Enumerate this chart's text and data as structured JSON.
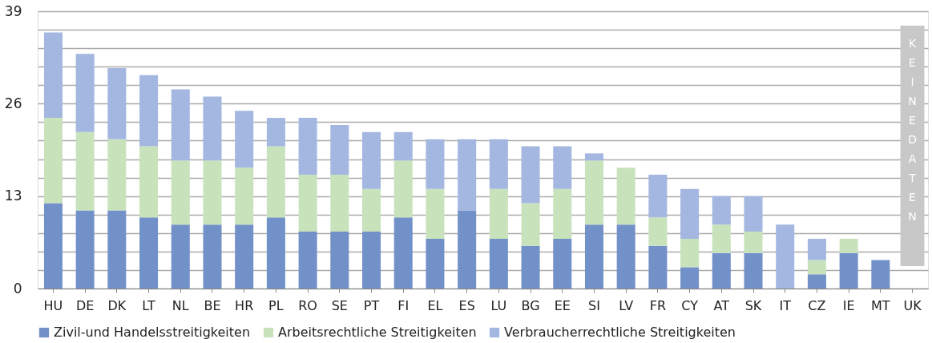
{
  "chart_data": {
    "type": "bar",
    "stacked": true,
    "categories": [
      "HU",
      "DE",
      "DK",
      "LT",
      "NL",
      "BE",
      "HR",
      "PL",
      "RO",
      "SE",
      "PT",
      "FI",
      "EL",
      "ES",
      "LU",
      "BG",
      "EE",
      "SI",
      "LV",
      "FR",
      "CY",
      "AT",
      "SK",
      "IT",
      "CZ",
      "IE",
      "MT",
      "UK"
    ],
    "series": [
      {
        "name": "Zivil-und Handelsstreitigkeiten",
        "color": "#7391c9",
        "values": [
          12,
          11,
          11,
          10,
          9,
          9,
          9,
          10,
          8,
          8,
          8,
          10,
          7,
          11,
          7,
          6,
          7,
          9,
          9,
          6,
          3,
          5,
          5,
          0,
          2,
          5,
          4,
          null
        ]
      },
      {
        "name": "Arbeitsrechtliche Streitigkeiten",
        "color": "#c8e3bc",
        "values": [
          12,
          11,
          10,
          10,
          9,
          9,
          8,
          10,
          8,
          8,
          6,
          8,
          7,
          0,
          7,
          6,
          7,
          9,
          8,
          4,
          4,
          4,
          3,
          0,
          2,
          2,
          0,
          null
        ]
      },
      {
        "name": "Verbraucherrechtliche Streitigkeiten",
        "color": "#a3b7e0",
        "values": [
          12,
          11,
          10,
          10,
          10,
          9,
          8,
          4,
          8,
          7,
          8,
          4,
          7,
          10,
          7,
          8,
          6,
          1,
          0,
          6,
          7,
          4,
          5,
          9,
          3,
          0,
          0,
          null
        ]
      }
    ],
    "ylim": [
      0,
      39
    ],
    "yticks": [
      0,
      {
        "value": 2.6,
        "label": null
      },
      {
        "value": 5.2,
        "label": null
      },
      {
        "value": 7.8,
        "label": null
      },
      {
        "value": 10.4,
        "label": null
      },
      13,
      {
        "value": 15.6,
        "label": null
      },
      {
        "value": 18.2,
        "label": null
      },
      {
        "value": 20.8,
        "label": null
      },
      {
        "value": 23.4,
        "label": null
      },
      26,
      {
        "value": 28.6,
        "label": null
      },
      {
        "value": 31.2,
        "label": null
      },
      {
        "value": 33.8,
        "label": null
      },
      {
        "value": 36.4,
        "label": null
      },
      39
    ],
    "grid": "y",
    "legend": "bottom",
    "bands": [
      {
        "axis": "x",
        "from": "UK",
        "to": "UK",
        "label": "KEINE DATEN",
        "color": "#c8c8c8"
      }
    ]
  }
}
